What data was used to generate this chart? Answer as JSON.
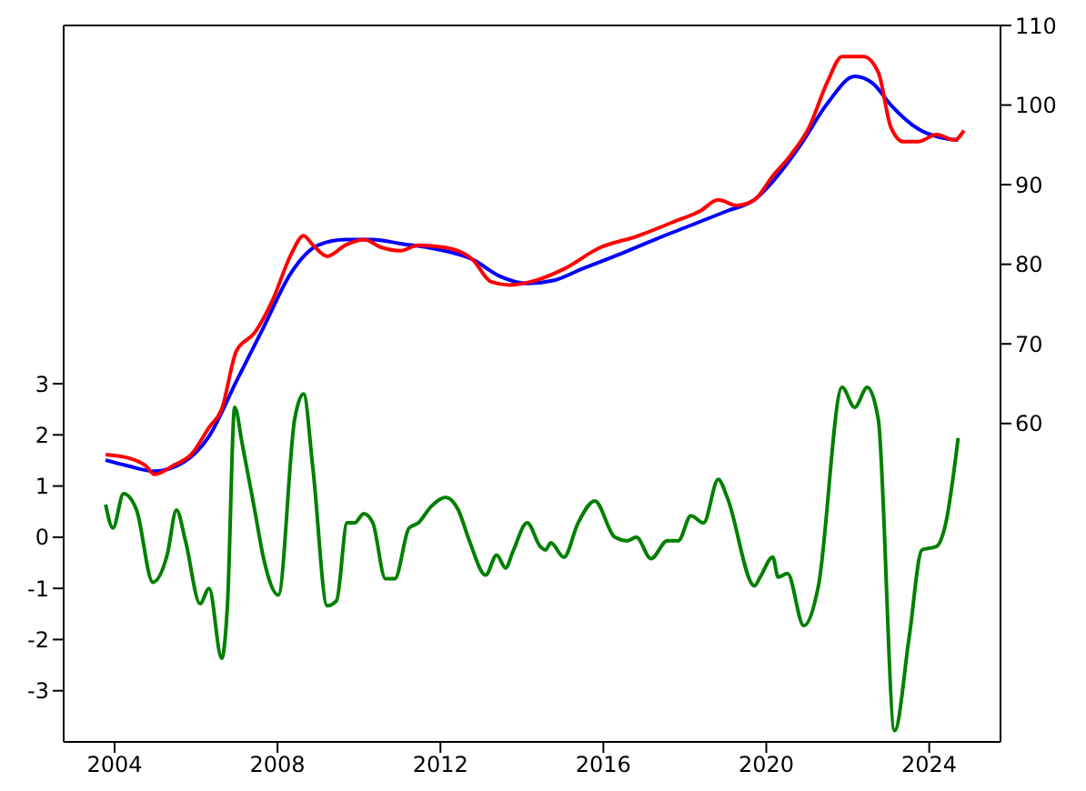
{
  "chart_data": {
    "type": "line",
    "xlim": [
      2002.75,
      2025.75
    ],
    "xticks": [
      2004,
      2008,
      2012,
      2016,
      2020,
      2024
    ],
    "ylim": [
      -4,
      10
    ],
    "yticks": [
      -3,
      -2,
      -1,
      0,
      1,
      2,
      3
    ],
    "y2lim": [
      20,
      110
    ],
    "y2ticks": [
      60,
      70,
      80,
      90,
      100,
      110
    ],
    "marker": "none",
    "line_style": "solid",
    "series": [
      {
        "color": "#0000ff",
        "axis": "y2",
        "x": [
          2003.78,
          2004.31,
          2004.98,
          2005.65,
          2006.32,
          2006.99,
          2007.66,
          2008.33,
          2009.0,
          2009.67,
          2010.34,
          2011.01,
          2011.9,
          2012.79,
          2013.46,
          2014.13,
          2014.8,
          2015.47,
          2016.37,
          2017.26,
          2018.15,
          2019.04,
          2019.71,
          2020.16,
          2020.83,
          2021.5,
          2022.17,
          2022.62,
          2023.06,
          2023.73,
          2024.4,
          2024.71
        ],
        "values": [
          55.4,
          54.7,
          54.0,
          55.0,
          58.4,
          65.3,
          72.1,
          78.9,
          82.4,
          83.1,
          83.1,
          82.6,
          81.9,
          80.6,
          78.5,
          77.6,
          78.0,
          79.4,
          81.2,
          83.1,
          84.9,
          86.7,
          88.1,
          90.4,
          94.9,
          100.2,
          103.6,
          102.7,
          100.0,
          97.0,
          95.8,
          95.6
        ]
      },
      {
        "color": "#ff0000",
        "axis": "y2",
        "x": [
          2003.78,
          2004.31,
          2004.76,
          2004.98,
          2005.43,
          2005.88,
          2006.32,
          2006.63,
          2006.99,
          2007.44,
          2007.88,
          2008.33,
          2008.64,
          2008.87,
          2009.22,
          2009.67,
          2010.12,
          2010.56,
          2011.01,
          2011.46,
          2012.13,
          2012.79,
          2013.24,
          2013.69,
          2014.36,
          2015.03,
          2015.92,
          2016.81,
          2017.71,
          2018.38,
          2018.82,
          2019.27,
          2019.71,
          2020.16,
          2020.61,
          2021.05,
          2021.5,
          2021.86,
          2022.39,
          2022.75,
          2023.06,
          2023.37,
          2023.73,
          2024.18,
          2024.62,
          2024.85
        ],
        "values": [
          56.1,
          55.7,
          54.7,
          53.6,
          54.7,
          56.1,
          59.5,
          61.8,
          69.1,
          71.4,
          75.5,
          81.2,
          83.6,
          82.4,
          81.0,
          82.4,
          83.1,
          82.1,
          81.7,
          82.4,
          82.1,
          80.6,
          77.8,
          77.4,
          78.0,
          79.4,
          82.1,
          83.5,
          85.3,
          86.7,
          88.1,
          87.4,
          88.1,
          91.1,
          93.8,
          97.2,
          102.9,
          106.1,
          106.1,
          104.1,
          97.2,
          95.4,
          95.4,
          96.3,
          95.6,
          96.8
        ]
      },
      {
        "color": "#008000",
        "axis": "y",
        "x": [
          2003.78,
          2003.96,
          2004.22,
          2004.54,
          2004.94,
          2005.29,
          2005.52,
          2005.74,
          2006.1,
          2006.32,
          2006.63,
          2006.77,
          2006.95,
          2007.13,
          2007.44,
          2007.66,
          2008.02,
          2008.42,
          2008.64,
          2008.87,
          2009.22,
          2009.45,
          2009.71,
          2009.89,
          2010.12,
          2010.34,
          2010.65,
          2010.88,
          2011.23,
          2011.46,
          2011.77,
          2012.13,
          2012.44,
          2012.71,
          2013.11,
          2013.38,
          2013.6,
          2013.78,
          2014.13,
          2014.45,
          2014.58,
          2014.71,
          2015.03,
          2015.38,
          2015.79,
          2016.28,
          2016.59,
          2016.81,
          2017.17,
          2017.57,
          2017.84,
          2018.15,
          2018.46,
          2018.82,
          2019.04,
          2019.71,
          2019.85,
          2020.16,
          2020.29,
          2020.52,
          2020.92,
          2021.28,
          2021.86,
          2022.17,
          2022.48,
          2022.75,
          2023.15,
          2023.51,
          2023.82,
          2024.18,
          2024.4,
          2024.71
        ],
        "values": [
          0.64,
          0.18,
          0.85,
          0.53,
          -0.88,
          -0.35,
          0.53,
          -0.07,
          -1.3,
          -1.0,
          -2.37,
          -1.34,
          2.54,
          1.84,
          0.53,
          -0.42,
          -1.13,
          2.3,
          2.8,
          1.34,
          -1.34,
          -1.24,
          0.28,
          0.28,
          0.46,
          0.28,
          -0.81,
          -0.81,
          0.18,
          0.28,
          0.6,
          0.78,
          0.53,
          -0.07,
          -0.74,
          -0.35,
          -0.6,
          -0.28,
          0.28,
          -0.18,
          -0.25,
          -0.11,
          -0.39,
          0.28,
          0.71,
          0,
          -0.07,
          0,
          -0.42,
          -0.07,
          -0.07,
          0.42,
          0.28,
          1.13,
          0.78,
          -0.95,
          -0.78,
          -0.39,
          -0.78,
          -0.71,
          -1.73,
          -0.95,
          2.93,
          2.54,
          2.93,
          2.3,
          -3.78,
          -1.94,
          -0.25,
          -0.18,
          0.25,
          1.94
        ]
      }
    ]
  }
}
